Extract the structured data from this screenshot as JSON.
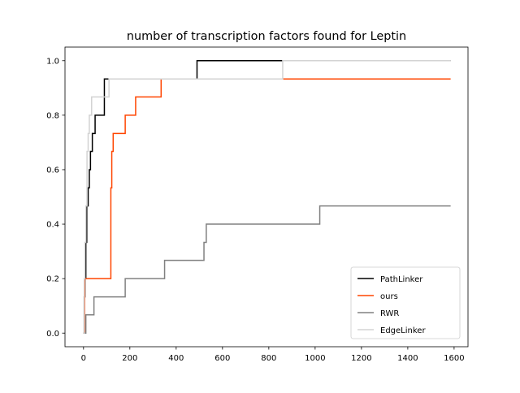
{
  "chart_data": {
    "type": "line",
    "title": "number of transcription factors found for Leptin",
    "xlabel": "",
    "ylabel": "",
    "xlim": [
      -80,
      1660
    ],
    "ylim": [
      -0.05,
      1.05
    ],
    "xticks": [
      0,
      200,
      400,
      600,
      800,
      1000,
      1200,
      1400,
      1600
    ],
    "yticks": [
      0.0,
      0.2,
      0.4,
      0.6,
      0.8,
      1.0
    ],
    "ytick_labels": [
      "0.0",
      "0.2",
      "0.4",
      "0.6",
      "0.8",
      "1.0"
    ],
    "grid": false,
    "legend_position": "lower-right",
    "step": "post",
    "series": [
      {
        "name": "PathLinker",
        "color": "#000000",
        "x": [
          0,
          3,
          6,
          10,
          14,
          20,
          25,
          30,
          38,
          50,
          58,
          90,
          115,
          490,
          860,
          1585
        ],
        "y": [
          0.0,
          0.133,
          0.2,
          0.333,
          0.467,
          0.533,
          0.6,
          0.667,
          0.733,
          0.8,
          0.8,
          0.933,
          0.933,
          1.0,
          1.0,
          1.0
        ]
      },
      {
        "name": "ours",
        "color": "#ff4500",
        "x": [
          0,
          5,
          115,
          118,
          122,
          128,
          180,
          225,
          335,
          490,
          860,
          1585
        ],
        "y": [
          0.0,
          0.2,
          0.2,
          0.533,
          0.667,
          0.733,
          0.8,
          0.867,
          0.933,
          0.933,
          0.933,
          0.933
        ]
      },
      {
        "name": "RWR",
        "color": "#808080",
        "x": [
          0,
          10,
          45,
          170,
          180,
          350,
          510,
          520,
          530,
          1015,
          1020,
          1585
        ],
        "y": [
          0.0,
          0.067,
          0.133,
          0.133,
          0.2,
          0.267,
          0.267,
          0.333,
          0.4,
          0.4,
          0.467,
          0.467
        ]
      },
      {
        "name": "EdgeLinker",
        "color": "#d3d3d3",
        "x": [
          0,
          3,
          6,
          10,
          15,
          20,
          25,
          35,
          110,
          490,
          860,
          1585
        ],
        "y": [
          0.0,
          0.2,
          0.333,
          0.467,
          0.667,
          0.733,
          0.8,
          0.867,
          0.933,
          0.933,
          1.0,
          1.0
        ]
      }
    ]
  }
}
